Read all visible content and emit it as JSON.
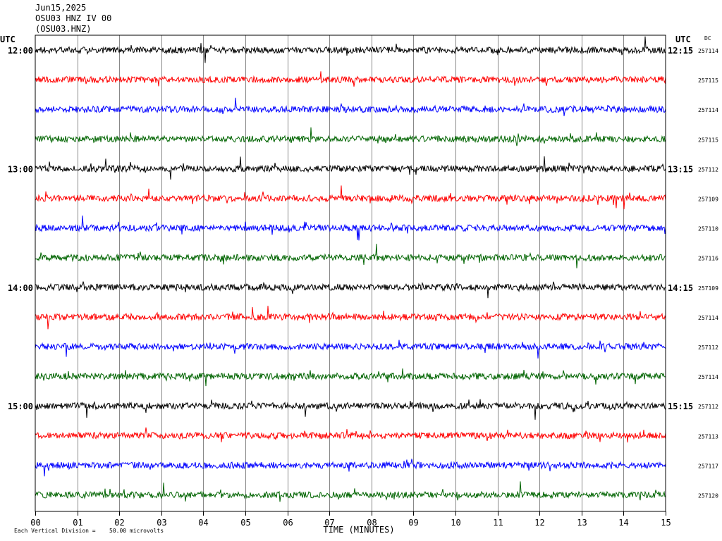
{
  "header": {
    "date": "Jun15,2025",
    "station": "OSU03 HNZ IV 00",
    "code": "(OSU03.HNZ)"
  },
  "labels": {
    "utc_left": "UTC",
    "utc_right": "UTC",
    "dc": "DC"
  },
  "footer": {
    "note": "Each Vertical Division =",
    "scale": "50.00 microvolts"
  },
  "colors": {
    "cycle": [
      "#000000",
      "#ff0000",
      "#0000ff",
      "#006400"
    ],
    "grid": "#888888",
    "frame": "#000000"
  },
  "chart_data": {
    "type": "line",
    "title": "",
    "xlabel": "TIME (MINUTES)",
    "ylabel": "",
    "xlim": [
      0,
      15
    ],
    "x_ticks": [
      "00",
      "01",
      "02",
      "03",
      "04",
      "05",
      "06",
      "07",
      "08",
      "09",
      "10",
      "11",
      "12",
      "13",
      "14",
      "15"
    ],
    "grid": true,
    "traces_per_hour": 4,
    "left_hour_labels": [
      "12:00",
      "13:00",
      "14:00",
      "15:00"
    ],
    "right_hour_labels": [
      "12:15",
      "13:15",
      "14:15",
      "15:15"
    ],
    "dc_values": [
      "257114",
      "257115",
      "257114",
      "257115",
      "257112",
      "257109",
      "257110",
      "257116",
      "257109",
      "257114",
      "257112",
      "257114",
      "257112",
      "257113",
      "257117",
      "257120"
    ]
  }
}
